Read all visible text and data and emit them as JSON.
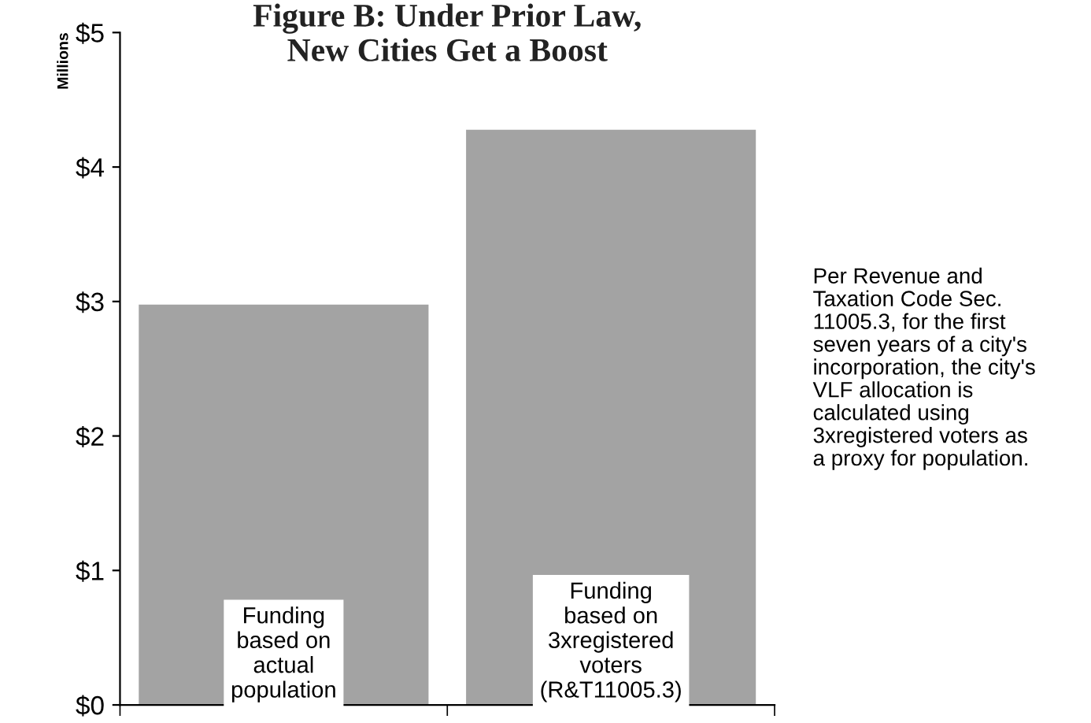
{
  "chart_data": {
    "type": "bar",
    "title": "Figure B: Under Prior Law,\nNew Cities Get a Boost",
    "ylabel": "Millions",
    "categories": [
      "Funding\nbased on\nactual\npopulation",
      "Funding\nbased on\n3xregistered\nvoters\n(R&T11005.3)"
    ],
    "values": [
      2.97,
      4.27
    ],
    "color": "#a3a3a3",
    "ylim": [
      0,
      5
    ],
    "yticks": [
      {
        "value": 0,
        "label": "$0"
      },
      {
        "value": 1,
        "label": "$1"
      },
      {
        "value": 2,
        "label": "$2"
      },
      {
        "value": 3,
        "label": "$3"
      },
      {
        "value": 4,
        "label": "$4"
      },
      {
        "value": 5,
        "label": "$5"
      }
    ],
    "grid": false,
    "legend": false,
    "annotations": [
      "Per Revenue and\nTaxation Code Sec.\n11005.3, for the first\nseven years of a city's\nincorporation, the city's\nVLF allocation is\ncalculated using\n3xregistered voters as\na proxy for population."
    ]
  }
}
